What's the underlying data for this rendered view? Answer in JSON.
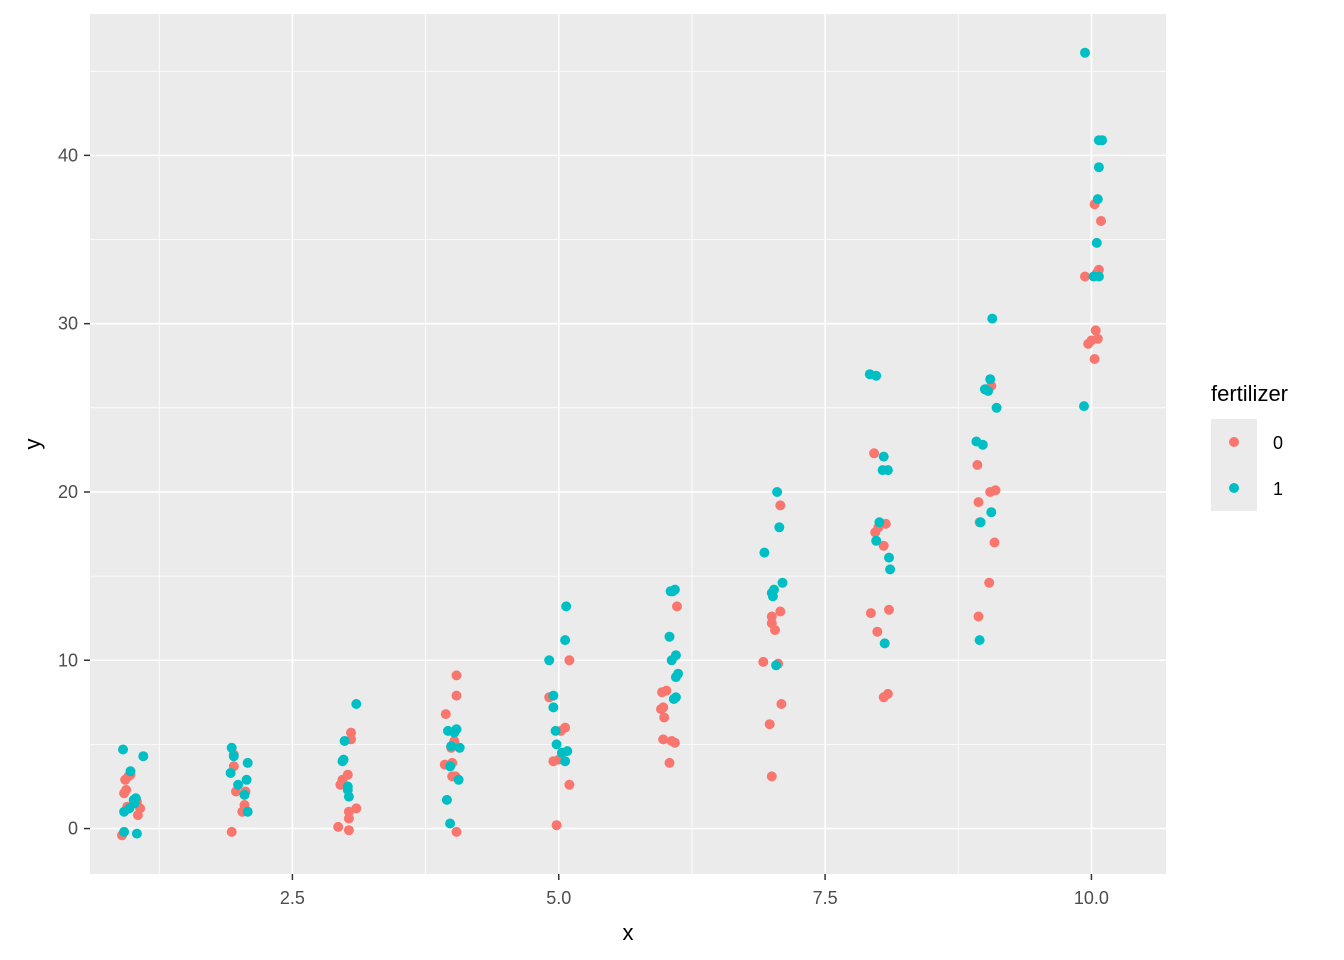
{
  "chart_data": {
    "type": "scatter",
    "title": "",
    "xlabel": "x",
    "ylabel": "y",
    "xlim": [
      0.6,
      10.7
    ],
    "ylim": [
      -2.7,
      48.4
    ],
    "x_ticks": [
      2.5,
      5.0,
      7.5,
      10.0
    ],
    "x_tick_labels": [
      "2.5",
      "5.0",
      "7.5",
      "10.0"
    ],
    "y_ticks": [
      0,
      10,
      20,
      30,
      40
    ],
    "y_tick_labels": [
      "0",
      "10",
      "20",
      "30",
      "40"
    ],
    "grid": true,
    "legend": {
      "title": "fertilizer",
      "placement": "right",
      "entries": [
        "0",
        "1"
      ]
    },
    "colors": {
      "0": "#F8766D",
      "1": "#00BFC4",
      "panel": "#EBEBEB",
      "grid": "#FFFFFF"
    },
    "series": [
      {
        "name": "0",
        "points": [
          [
            0.93,
            2.9
          ],
          [
            0.96,
            3.1
          ],
          [
            0.92,
            2.1
          ],
          [
            0.95,
            1.3
          ],
          [
            1.04,
            1.6
          ],
          [
            1.07,
            1.2
          ],
          [
            1.05,
            0.8
          ],
          [
            0.9,
            -0.4
          ],
          [
            0.98,
            3.2
          ],
          [
            0.94,
            2.3
          ],
          [
            1.95,
            4.4
          ],
          [
            1.95,
            3.7
          ],
          [
            1.97,
            2.2
          ],
          [
            2.06,
            2.2
          ],
          [
            2.05,
            1.4
          ],
          [
            2.03,
            1.0
          ],
          [
            1.93,
            -0.2
          ],
          [
            3.05,
            5.7
          ],
          [
            3.05,
            5.3
          ],
          [
            3.02,
            3.2
          ],
          [
            2.97,
            2.9
          ],
          [
            2.95,
            2.6
          ],
          [
            3.1,
            1.2
          ],
          [
            3.03,
            1.0
          ],
          [
            3.03,
            0.6
          ],
          [
            2.93,
            0.1
          ],
          [
            3.03,
            -0.1
          ],
          [
            4.04,
            9.1
          ],
          [
            4.04,
            7.9
          ],
          [
            3.94,
            6.8
          ],
          [
            4.02,
            5.2
          ],
          [
            3.99,
            4.8
          ],
          [
            4.0,
            3.9
          ],
          [
            3.93,
            3.8
          ],
          [
            4.0,
            3.1
          ],
          [
            4.03,
            3.1
          ],
          [
            4.04,
            -0.2
          ],
          [
            5.1,
            10.0
          ],
          [
            4.91,
            7.8
          ],
          [
            5.06,
            6.0
          ],
          [
            5.02,
            5.8
          ],
          [
            5.0,
            4.1
          ],
          [
            4.95,
            4.0
          ],
          [
            5.1,
            2.6
          ],
          [
            4.98,
            0.2
          ],
          [
            6.11,
            13.2
          ],
          [
            6.01,
            8.2
          ],
          [
            5.97,
            8.1
          ],
          [
            5.96,
            7.1
          ],
          [
            5.99,
            6.6
          ],
          [
            5.98,
            5.3
          ],
          [
            6.06,
            5.2
          ],
          [
            6.09,
            5.1
          ],
          [
            6.04,
            3.9
          ],
          [
            5.98,
            7.2
          ],
          [
            7.08,
            19.2
          ],
          [
            7.08,
            12.9
          ],
          [
            7.0,
            12.6
          ],
          [
            7.0,
            12.2
          ],
          [
            7.03,
            11.8
          ],
          [
            6.92,
            9.9
          ],
          [
            7.06,
            9.8
          ],
          [
            7.09,
            7.4
          ],
          [
            6.98,
            6.2
          ],
          [
            7.0,
            3.1
          ],
          [
            7.96,
            22.3
          ],
          [
            8.0,
            17.9
          ],
          [
            7.97,
            17.6
          ],
          [
            8.07,
            18.1
          ],
          [
            8.05,
            16.8
          ],
          [
            8.1,
            13.0
          ],
          [
            7.93,
            12.8
          ],
          [
            7.99,
            11.7
          ],
          [
            8.09,
            8.0
          ],
          [
            8.05,
            7.8
          ],
          [
            9.06,
            26.3
          ],
          [
            8.93,
            21.6
          ],
          [
            9.05,
            20.0
          ],
          [
            9.1,
            20.1
          ],
          [
            8.94,
            19.4
          ],
          [
            8.95,
            18.2
          ],
          [
            9.09,
            17.0
          ],
          [
            9.04,
            14.6
          ],
          [
            8.94,
            12.6
          ],
          [
            10.03,
            37.1
          ],
          [
            10.09,
            36.1
          ],
          [
            10.07,
            33.2
          ],
          [
            10.05,
            33.0
          ],
          [
            9.94,
            32.8
          ],
          [
            10.04,
            29.6
          ],
          [
            9.97,
            28.8
          ],
          [
            10.0,
            29.0
          ],
          [
            10.06,
            29.1
          ],
          [
            10.03,
            27.9
          ]
        ]
      },
      {
        "name": "1",
        "points": [
          [
            0.91,
            4.7
          ],
          [
            1.1,
            4.3
          ],
          [
            0.98,
            3.4
          ],
          [
            1.01,
            1.7
          ],
          [
            0.97,
            1.2
          ],
          [
            1.02,
            1.5
          ],
          [
            0.92,
            1.0
          ],
          [
            1.03,
            1.8
          ],
          [
            0.92,
            -0.2
          ],
          [
            1.04,
            -0.3
          ],
          [
            1.93,
            4.8
          ],
          [
            2.08,
            3.9
          ],
          [
            1.95,
            4.3
          ],
          [
            1.92,
            3.3
          ],
          [
            2.07,
            2.9
          ],
          [
            1.99,
            2.6
          ],
          [
            2.05,
            2.0
          ],
          [
            2.08,
            1.0
          ],
          [
            2.99,
            5.2
          ],
          [
            3.1,
            7.4
          ],
          [
            2.98,
            4.1
          ],
          [
            2.97,
            4.0
          ],
          [
            3.02,
            2.3
          ],
          [
            3.03,
            1.9
          ],
          [
            3.02,
            2.5
          ],
          [
            4.04,
            5.9
          ],
          [
            3.96,
            5.8
          ],
          [
            4.02,
            5.7
          ],
          [
            3.99,
            4.9
          ],
          [
            4.07,
            4.8
          ],
          [
            3.98,
            3.7
          ],
          [
            4.06,
            2.9
          ],
          [
            3.95,
            1.7
          ],
          [
            3.98,
            0.3
          ],
          [
            5.07,
            13.2
          ],
          [
            5.06,
            11.2
          ],
          [
            4.91,
            10.0
          ],
          [
            4.95,
            7.9
          ],
          [
            4.95,
            7.2
          ],
          [
            4.97,
            5.8
          ],
          [
            4.98,
            5.0
          ],
          [
            5.08,
            4.6
          ],
          [
            5.03,
            4.5
          ],
          [
            5.06,
            4.0
          ],
          [
            6.07,
            14.1
          ],
          [
            6.09,
            14.2
          ],
          [
            6.05,
            14.1
          ],
          [
            6.04,
            11.4
          ],
          [
            6.1,
            10.3
          ],
          [
            6.06,
            10.0
          ],
          [
            6.1,
            9.0
          ],
          [
            6.12,
            9.2
          ],
          [
            6.08,
            7.7
          ],
          [
            6.1,
            7.8
          ],
          [
            7.05,
            20.0
          ],
          [
            7.07,
            17.9
          ],
          [
            6.93,
            16.4
          ],
          [
            7.1,
            14.6
          ],
          [
            7.02,
            14.2
          ],
          [
            7.0,
            14.0
          ],
          [
            7.01,
            13.8
          ],
          [
            7.04,
            9.7
          ],
          [
            7.92,
            27.0
          ],
          [
            7.98,
            26.9
          ],
          [
            8.05,
            22.1
          ],
          [
            8.04,
            21.3
          ],
          [
            8.09,
            21.3
          ],
          [
            8.01,
            18.2
          ],
          [
            7.98,
            17.1
          ],
          [
            8.1,
            16.1
          ],
          [
            8.11,
            15.4
          ],
          [
            8.06,
            11.0
          ],
          [
            9.07,
            30.3
          ],
          [
            9.05,
            26.7
          ],
          [
            9.0,
            26.1
          ],
          [
            9.03,
            26.0
          ],
          [
            9.11,
            25.0
          ],
          [
            8.92,
            23.0
          ],
          [
            8.98,
            22.8
          ],
          [
            9.06,
            18.8
          ],
          [
            8.96,
            18.2
          ],
          [
            8.95,
            11.2
          ],
          [
            9.94,
            46.1
          ],
          [
            10.07,
            40.9
          ],
          [
            10.1,
            40.9
          ],
          [
            10.07,
            39.3
          ],
          [
            10.06,
            37.4
          ],
          [
            10.05,
            34.8
          ],
          [
            10.02,
            32.8
          ],
          [
            10.07,
            32.8
          ],
          [
            9.93,
            25.1
          ]
        ]
      }
    ]
  }
}
